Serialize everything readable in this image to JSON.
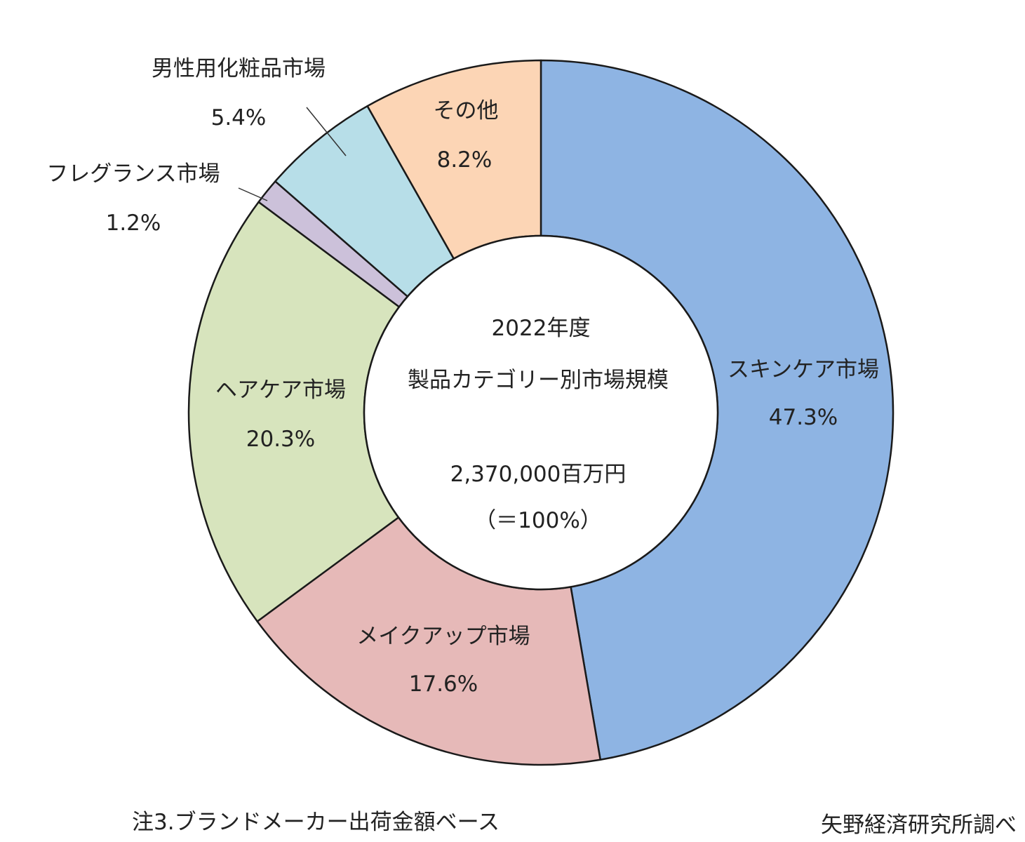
{
  "chart_data": {
    "type": "pie",
    "variant": "donut",
    "title": "2022年度",
    "subtitle": "製品カテゴリー別市場規模",
    "total_label": "2,370,000百万円",
    "total_pct_label": "（＝100%）",
    "slices": [
      {
        "name": "スキンケア市場",
        "value": 47.3,
        "label": "47.3%",
        "color": "#8eb4e3"
      },
      {
        "name": "メイクアップ市場",
        "value": 17.6,
        "label": "17.6%",
        "color": "#e6b9b8"
      },
      {
        "name": "ヘアケア市場",
        "value": 20.3,
        "label": "20.3%",
        "color": "#d7e4bd"
      },
      {
        "name": "フレグランス市場",
        "value": 1.2,
        "label": "1.2%",
        "color": "#ccc1da"
      },
      {
        "name": "男性用化粧品市場",
        "value": 5.4,
        "label": "5.4%",
        "color": "#b7dee8"
      },
      {
        "name": "その他",
        "value": 8.2,
        "label": "8.2%",
        "color": "#fcd5b5"
      }
    ]
  },
  "footnotes": {
    "left": "注3.ブランドメーカー出荷金額ベース",
    "right": "矢野経済研究所調べ"
  }
}
